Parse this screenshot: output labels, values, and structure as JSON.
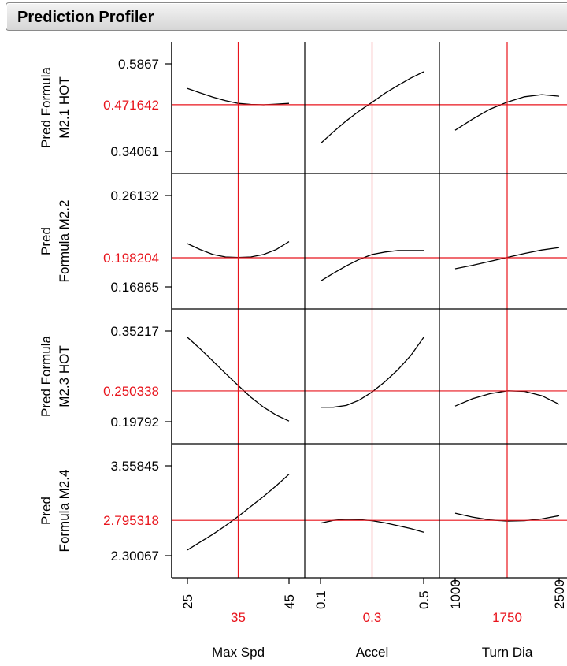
{
  "header": {
    "title": "Prediction Profiler"
  },
  "colors": {
    "current": "#e8141c",
    "axis": "#000000",
    "curve": "#000000",
    "text": "#000000"
  },
  "chart_data": {
    "type": "line",
    "title": "",
    "factors": [
      {
        "name": "Max Spd",
        "ticks": [
          "25",
          "45"
        ],
        "xlim": [
          25,
          45
        ],
        "current": 35,
        "current_label": "35"
      },
      {
        "name": "Accel",
        "ticks": [
          "0.1",
          "0.5"
        ],
        "xlim": [
          0.1,
          0.5
        ],
        "current": 0.3,
        "current_label": "0.3"
      },
      {
        "name": "Turn Dia",
        "ticks": [
          "1000",
          "2500"
        ],
        "xlim": [
          1000,
          2500
        ],
        "current": 1750,
        "current_label": "1750"
      }
    ],
    "responses": [
      {
        "name_lines": [
          "Pred Formula",
          "M2.1 HOT"
        ],
        "ticks": [
          "0.5867",
          "0.34061"
        ],
        "ylim": [
          0.34061,
          0.5867
        ],
        "current": 0.471642,
        "current_label": "0.471642",
        "curves": [
          {
            "x": [
              25,
              27.5,
              30,
              32.5,
              35,
              37.5,
              40,
              42.5,
              45
            ],
            "y": [
              0.5175,
              0.505,
              0.493,
              0.483,
              0.4755,
              0.4725,
              0.4715,
              0.4735,
              0.4755
            ]
          },
          {
            "x": [
              0.1,
              0.15,
              0.2,
              0.25,
              0.3,
              0.35,
              0.4,
              0.45,
              0.5
            ],
            "y": [
              0.3625,
              0.3955,
              0.4265,
              0.454,
              0.4785,
              0.504,
              0.526,
              0.5465,
              0.5645
            ]
          },
          {
            "x": [
              1000,
              1250,
              1500,
              1750,
              2000,
              2250,
              2500
            ],
            "y": [
              0.4,
              0.431,
              0.459,
              0.479,
              0.494,
              0.5,
              0.4955
            ]
          }
        ]
      },
      {
        "name_lines": [
          "Pred",
          "Formula M2.2"
        ],
        "ticks": [
          "0.26132",
          "0.16865"
        ],
        "ylim": [
          0.16865,
          0.26132
        ],
        "current": 0.198204,
        "current_label": "0.198204",
        "curves": [
          {
            "x": [
              25,
              27.5,
              30,
              32.5,
              35,
              37.5,
              40,
              42.5,
              45
            ],
            "y": [
              0.2125,
              0.2065,
              0.2015,
              0.199,
              0.1985,
              0.199,
              0.2015,
              0.2065,
              0.2145
            ]
          },
          {
            "x": [
              0.1,
              0.15,
              0.2,
              0.25,
              0.3,
              0.35,
              0.4,
              0.45,
              0.5
            ],
            "y": [
              0.1745,
              0.1825,
              0.19,
              0.1965,
              0.2015,
              0.204,
              0.2055,
              0.2055,
              0.2055
            ]
          },
          {
            "x": [
              1000,
              1250,
              1500,
              1750,
              2000,
              2250,
              2500
            ],
            "y": [
              0.187,
              0.1905,
              0.1945,
              0.1985,
              0.2025,
              0.206,
              0.2085
            ]
          }
        ]
      },
      {
        "name_lines": [
          "Pred Formula",
          "M2.3 HOT"
        ],
        "ticks": [
          "0.35217",
          "0.19792"
        ],
        "ylim": [
          0.19792,
          0.35217
        ],
        "current": 0.250338,
        "current_label": "0.250338",
        "curves": [
          {
            "x": [
              25,
              27.5,
              30,
              32.5,
              35,
              37.5,
              40,
              42.5,
              45
            ],
            "y": [
              0.3415,
              0.322,
              0.301,
              0.28,
              0.2595,
              0.2395,
              0.2225,
              0.209,
              0.199
            ]
          },
          {
            "x": [
              0.1,
              0.15,
              0.2,
              0.25,
              0.3,
              0.35,
              0.4,
              0.45,
              0.5
            ],
            "y": [
              0.2225,
              0.2225,
              0.2255,
              0.2345,
              0.2485,
              0.266,
              0.2865,
              0.3105,
              0.3415
            ]
          },
          {
            "x": [
              1000,
              1250,
              1500,
              1750,
              2000,
              2250,
              2500
            ],
            "y": [
              0.2245,
              0.237,
              0.2455,
              0.2505,
              0.2495,
              0.242,
              0.2275
            ]
          }
        ]
      },
      {
        "name_lines": [
          "Pred",
          "Formula M2.4"
        ],
        "ticks": [
          "3.55845",
          "2.30067"
        ],
        "ylim": [
          2.30067,
          3.55845
        ],
        "current": 2.795318,
        "current_label": "2.795318",
        "curves": [
          {
            "x": [
              25,
              27.5,
              30,
              32.5,
              35,
              37.5,
              40,
              42.5,
              45
            ],
            "y": [
              2.38,
              2.49,
              2.6,
              2.72,
              2.85,
              2.99,
              3.13,
              3.28,
              3.44
            ]
          },
          {
            "x": [
              0.1,
              0.15,
              0.2,
              0.25,
              0.3,
              0.35,
              0.4,
              0.45,
              0.5
            ],
            "y": [
              2.755,
              2.795,
              2.81,
              2.805,
              2.79,
              2.76,
              2.72,
              2.68,
              2.63
            ]
          },
          {
            "x": [
              1000,
              1250,
              1500,
              1750,
              2000,
              2250,
              2500
            ],
            "y": [
              2.895,
              2.84,
              2.8,
              2.785,
              2.79,
              2.815,
              2.86
            ]
          }
        ]
      }
    ]
  }
}
